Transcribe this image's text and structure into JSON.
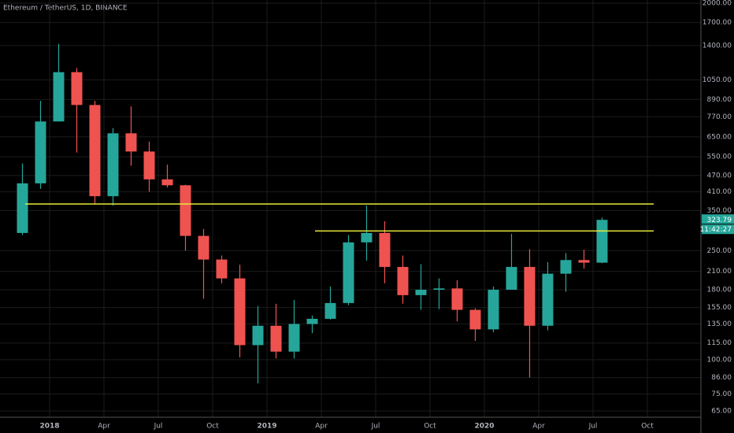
{
  "chart_data": {
    "type": "candlestick",
    "title": "Ethereum / TetherUS, 1D, BINANCE",
    "x": [
      "2017-11",
      "2017-12",
      "2018-01",
      "2018-02",
      "2018-03",
      "2018-04",
      "2018-05",
      "2018-06",
      "2018-07",
      "2018-08",
      "2018-09",
      "2018-10",
      "2018-11",
      "2018-12",
      "2019-01",
      "2019-02",
      "2019-03",
      "2019-04",
      "2019-05",
      "2019-06",
      "2019-07",
      "2019-08",
      "2019-09",
      "2019-10",
      "2019-11",
      "2019-12",
      "2020-01",
      "2020-02",
      "2020-03",
      "2020-04",
      "2020-05",
      "2020-06",
      "2020-07"
    ],
    "open": [
      290,
      440,
      740,
      1120,
      850,
      395,
      670,
      575,
      455,
      433,
      283,
      232,
      198,
      113,
      133,
      107,
      135,
      141,
      161,
      268,
      290,
      218,
      172,
      180,
      182,
      152,
      129,
      180,
      218,
      133,
      206,
      231,
      226
    ],
    "high": [
      520,
      880,
      1420,
      1160,
      880,
      700,
      840,
      625,
      515,
      435,
      300,
      240,
      222,
      157,
      160,
      165,
      145,
      185,
      285,
      365,
      320,
      240,
      223,
      198,
      195,
      154,
      185,
      288,
      253,
      227,
      245,
      252,
      330
    ],
    "low": [
      285,
      420,
      740,
      570,
      370,
      365,
      510,
      410,
      425,
      250,
      167,
      190,
      102,
      82,
      101,
      101,
      125,
      140,
      158,
      230,
      190,
      160,
      152,
      153,
      138,
      117,
      126,
      180,
      86,
      128,
      177,
      215,
      225
    ],
    "close": [
      440,
      740,
      1120,
      850,
      395,
      670,
      575,
      455,
      433,
      283,
      232,
      198,
      113,
      133,
      107,
      135,
      141,
      161,
      268,
      290,
      218,
      172,
      180,
      182,
      152,
      129,
      180,
      218,
      133,
      206,
      231,
      226,
      323.79
    ],
    "up_color": "#26a69a",
    "down_color": "#ef5350",
    "log_scale": true,
    "grid": true,
    "ylim": [
      65,
      2000
    ],
    "yticks": [
      {
        "value": 2000,
        "label": "2000.00"
      },
      {
        "value": 1700,
        "label": "1700.00"
      },
      {
        "value": 1400,
        "label": "1400.00"
      },
      {
        "value": 1050,
        "label": "1050.00"
      },
      {
        "value": 890,
        "label": "890.00"
      },
      {
        "value": 770,
        "label": "770.00"
      },
      {
        "value": 650,
        "label": "650.00"
      },
      {
        "value": 550,
        "label": "550.00"
      },
      {
        "value": 470,
        "label": "470.00"
      },
      {
        "value": 410,
        "label": "410.00"
      },
      {
        "value": 350,
        "label": "350.00"
      },
      {
        "value": 250,
        "label": "250.00"
      },
      {
        "value": 210,
        "label": "210.00"
      },
      {
        "value": 180,
        "label": "180.00"
      },
      {
        "value": 155,
        "label": "155.00"
      },
      {
        "value": 135,
        "label": "135.00"
      },
      {
        "value": 115,
        "label": "115.00"
      },
      {
        "value": 100,
        "label": "100.00"
      },
      {
        "value": 86,
        "label": "86.00"
      },
      {
        "value": 75,
        "label": "75.00"
      },
      {
        "value": 65,
        "label": "65.00"
      }
    ],
    "xticks": [
      {
        "value": "2018-01",
        "label": "2018"
      },
      {
        "value": "2018-04",
        "label": "Apr"
      },
      {
        "value": "2018-07",
        "label": "Jul"
      },
      {
        "value": "2018-10",
        "label": "Oct"
      },
      {
        "value": "2019-01",
        "label": "2019"
      },
      {
        "value": "2019-04",
        "label": "Apr"
      },
      {
        "value": "2019-07",
        "label": "Jul"
      },
      {
        "value": "2019-10",
        "label": "Oct"
      },
      {
        "value": "2020-01",
        "label": "2020"
      },
      {
        "value": "2020-04",
        "label": "Apr"
      },
      {
        "value": "2020-07",
        "label": "Jul"
      },
      {
        "value": "2020-10",
        "label": "Oct"
      }
    ],
    "hlines": [
      {
        "value": 370,
        "from": "2017-12",
        "to": "2020-10",
        "color": "#e8e83a"
      },
      {
        "value": 295,
        "from": "2019-04",
        "to": "2020-10",
        "color": "#e8e83a"
      }
    ],
    "countdown": "11:42:27"
  }
}
